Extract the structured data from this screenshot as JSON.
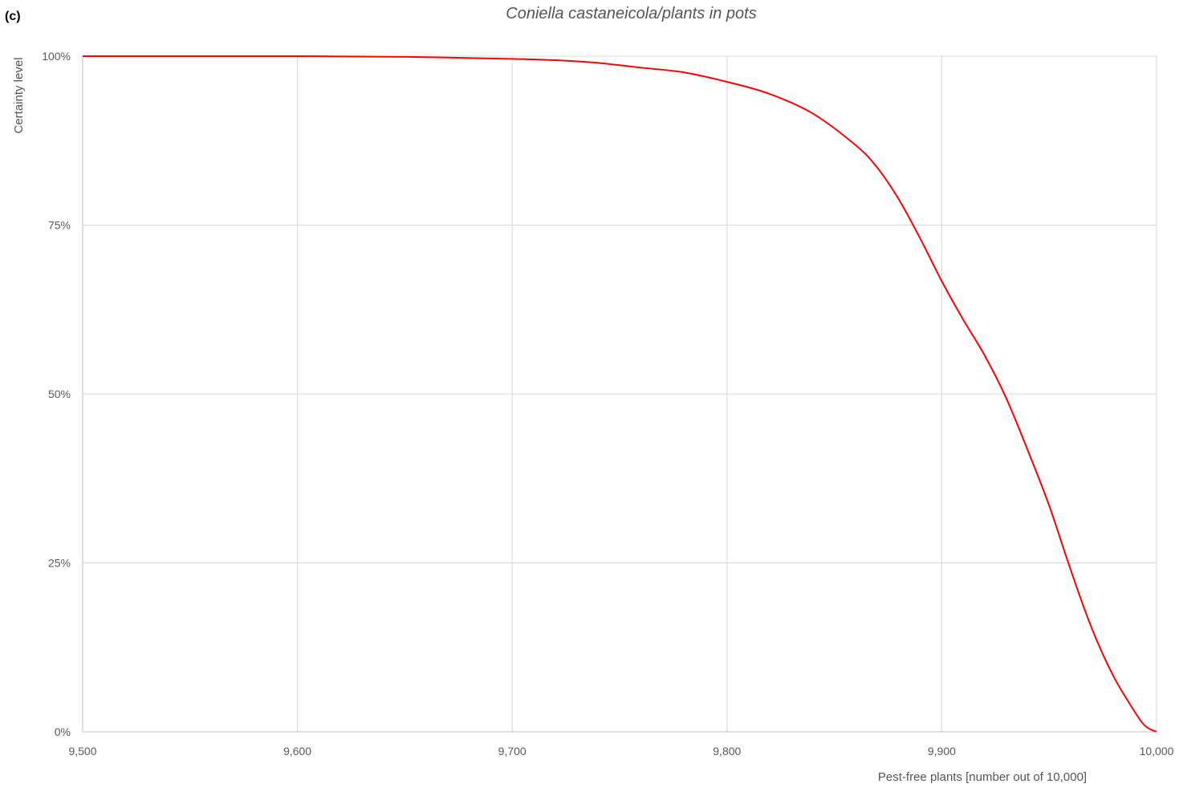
{
  "panel_label": "(c)",
  "chart_data": {
    "type": "line",
    "title": "Coniella castaneicola/plants in pots",
    "xlabel": "Pest-free plants [number out of 10,000]",
    "ylabel": "Certainty level",
    "xlim": [
      9500,
      10000
    ],
    "ylim": [
      0,
      100
    ],
    "x_ticks": [
      9500,
      9600,
      9700,
      9800,
      9900,
      10000
    ],
    "x_tick_labels": [
      "9,500",
      "9,600",
      "9,700",
      "9,800",
      "9,900",
      "10,000"
    ],
    "y_ticks": [
      0,
      25,
      50,
      75,
      100
    ],
    "y_tick_labels": [
      "0%",
      "25%",
      "50%",
      "75%",
      "100%"
    ],
    "grid": true,
    "line_color": "#ff0000",
    "series": [
      {
        "x": [
          9500,
          9550,
          9600,
          9650,
          9700,
          9720,
          9740,
          9760,
          9780,
          9800,
          9820,
          9840,
          9860,
          9870,
          9880,
          9890,
          9900,
          9910,
          9920,
          9930,
          9940,
          9950,
          9960,
          9970,
          9980,
          9990,
          9995,
          10000
        ],
        "values": [
          100,
          100,
          100,
          99.9,
          99.6,
          99.4,
          99,
          98.3,
          97.6,
          96.2,
          94.4,
          91.5,
          86.8,
          83.5,
          78.8,
          73,
          66.7,
          61,
          55.7,
          49.4,
          41.7,
          33.5,
          24,
          15.2,
          8.2,
          2.9,
          0.8,
          0
        ]
      }
    ]
  }
}
